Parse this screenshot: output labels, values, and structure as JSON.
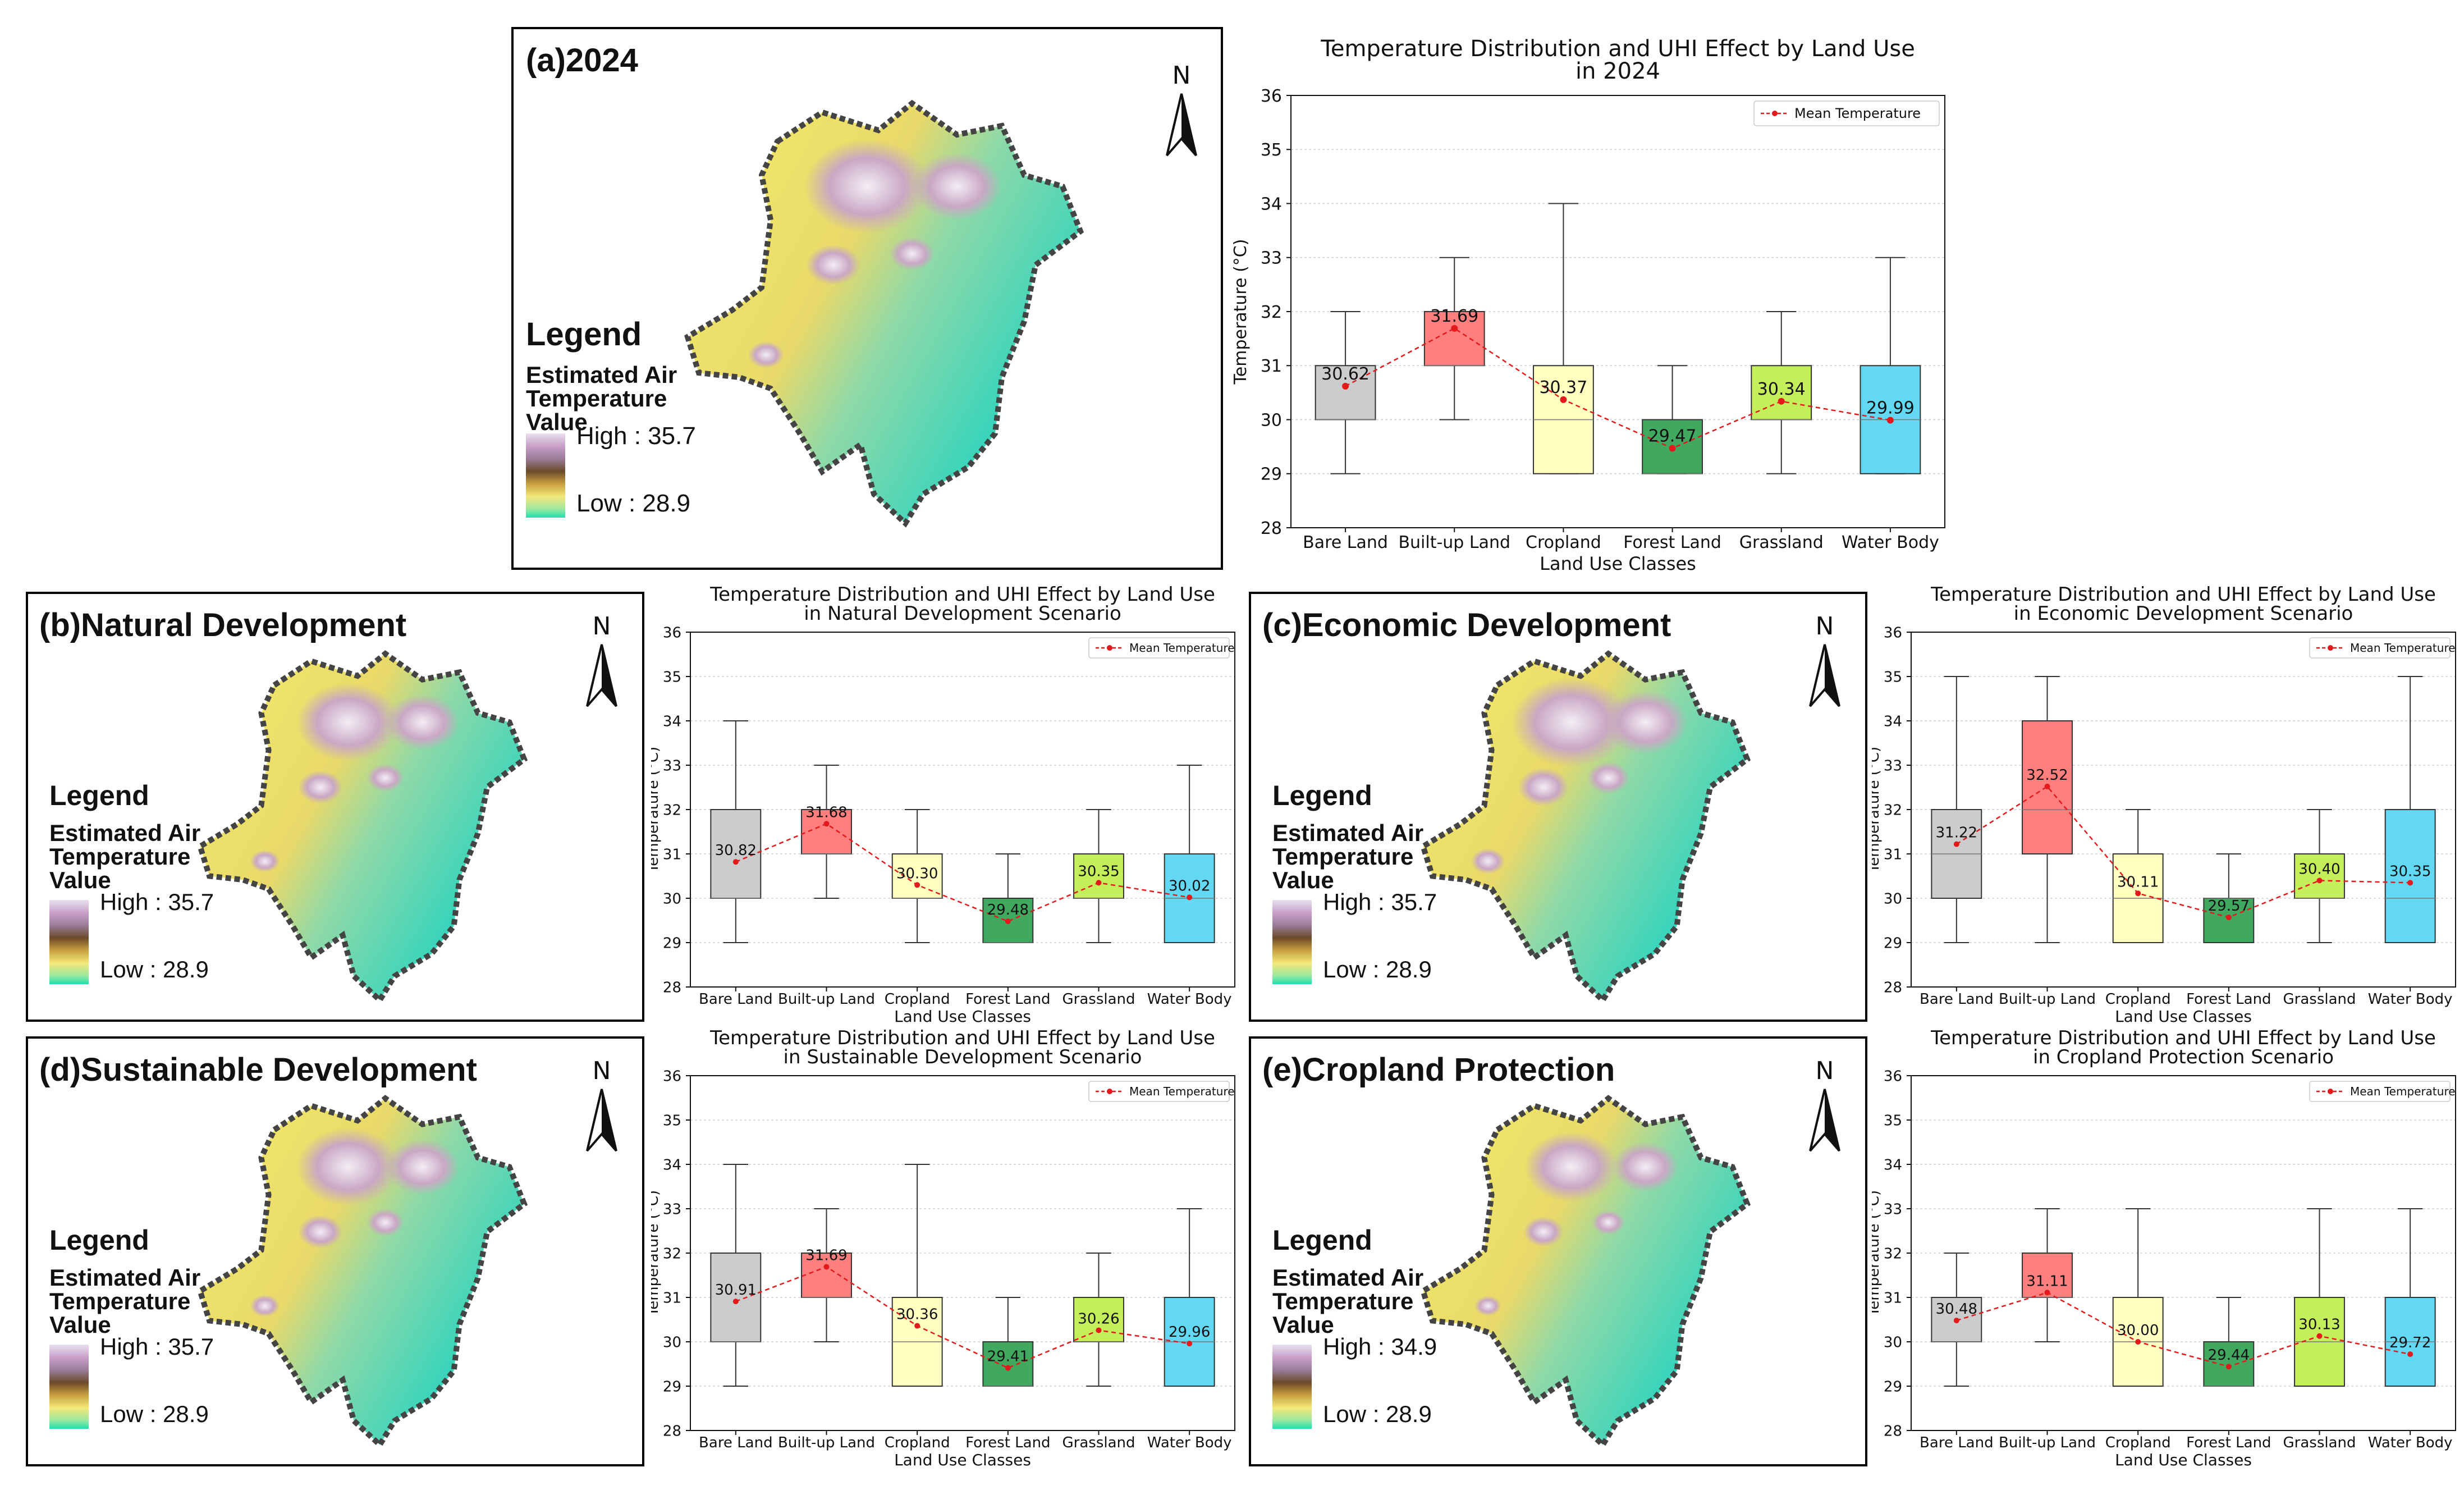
{
  "maps": [
    {
      "id": "a",
      "title": "(a)2024",
      "legend_title": "Legend",
      "legend_sub": [
        "Estimated Air",
        "Temperature",
        "Value"
      ],
      "high": "High : 35.7",
      "low": "Low : 28.9",
      "north": "N",
      "variant": 0
    },
    {
      "id": "b",
      "title": "(b)Natural Development",
      "legend_title": "Legend",
      "legend_sub": [
        "Estimated Air",
        "Temperature",
        "Value"
      ],
      "high": "High : 35.7",
      "low": "Low : 28.9",
      "north": "N",
      "variant": 1
    },
    {
      "id": "c",
      "title": "(c)Economic Development",
      "legend_title": "Legend",
      "legend_sub": [
        "Estimated Air",
        "Temperature",
        "Value"
      ],
      "high": "High : 35.7",
      "low": "Low : 28.9",
      "north": "N",
      "variant": 2
    },
    {
      "id": "d",
      "title": "(d)Sustainable Development",
      "legend_title": "Legend",
      "legend_sub": [
        "Estimated Air",
        "Temperature",
        "Value"
      ],
      "high": "High : 35.7",
      "low": "Low : 28.9",
      "north": "N",
      "variant": 3
    },
    {
      "id": "e",
      "title": "(e)Cropland Protection",
      "legend_title": "Legend",
      "legend_sub": [
        "Estimated Air",
        "Temperature",
        "Value"
      ],
      "high": "High : 34.9",
      "low": "Low : 28.9",
      "north": "N",
      "variant": 4
    }
  ],
  "colors": {
    "Bare Land": "#cccccc",
    "Built-up Land": "#ff7f7f",
    "Cropland": "#ffffc0",
    "Forest Land": "#41a85f",
    "Grassland": "#c4ee5a",
    "Water Body": "#63d8f2",
    "mean": "#e31a1c",
    "map_cool": "#1fd3c0",
    "map_warm": "#f5ec6a",
    "map_hot": "#c9a7c4"
  },
  "chart_data": [
    {
      "id": "a",
      "type": "box",
      "title": [
        "Temperature Distribution and UHI Effect by Land Use",
        "in 2024"
      ],
      "xlabel": "Land Use Classes",
      "ylabel": "Temperature (°C)",
      "ylim": [
        28,
        36
      ],
      "yticks": [
        28,
        29,
        30,
        31,
        32,
        33,
        34,
        35,
        36
      ],
      "legend": "Mean Temperature",
      "legend_loc": "upper right",
      "categories": [
        "Bare Land",
        "Built-up Land",
        "Cropland",
        "Forest Land",
        "Grassland",
        "Water Body"
      ],
      "boxes": [
        {
          "min": 29,
          "q1": 30,
          "median": 30,
          "q3": 31,
          "max": 32
        },
        {
          "min": 30,
          "q1": 31,
          "median": 31,
          "q3": 32,
          "max": 33
        },
        {
          "min": 29,
          "q1": 29,
          "median": 30,
          "q3": 31,
          "max": 34
        },
        {
          "min": 29,
          "q1": 29,
          "median": 29,
          "q3": 30,
          "max": 31
        },
        {
          "min": 29,
          "q1": 30,
          "median": 30,
          "q3": 31,
          "max": 32
        },
        {
          "min": 29,
          "q1": 29,
          "median": 30,
          "q3": 31,
          "max": 33
        }
      ],
      "means": [
        30.62,
        31.69,
        30.37,
        29.47,
        30.34,
        29.99
      ],
      "mean_labels": [
        "30.62",
        "31.69",
        "30.37",
        "29.47",
        "30.34",
        "29.99"
      ]
    },
    {
      "id": "b",
      "type": "box",
      "title": [
        "Temperature Distribution and UHI Effect by Land Use",
        "in Natural Development Scenario"
      ],
      "xlabel": "Land Use Classes",
      "ylabel": "Temperature (°C)",
      "ylim": [
        28,
        36
      ],
      "yticks": [
        28,
        29,
        30,
        31,
        32,
        33,
        34,
        35,
        36
      ],
      "legend": "Mean Temperature",
      "legend_loc": "upper right",
      "categories": [
        "Bare Land",
        "Built-up Land",
        "Cropland",
        "Forest Land",
        "Grassland",
        "Water Body"
      ],
      "boxes": [
        {
          "min": 29,
          "q1": 30,
          "median": 30,
          "q3": 32,
          "max": 34
        },
        {
          "min": 30,
          "q1": 31,
          "median": 31,
          "q3": 32,
          "max": 33
        },
        {
          "min": 29,
          "q1": 30,
          "median": 30,
          "q3": 31,
          "max": 32
        },
        {
          "min": 29,
          "q1": 29,
          "median": 29,
          "q3": 30,
          "max": 31
        },
        {
          "min": 29,
          "q1": 30,
          "median": 30,
          "q3": 31,
          "max": 32
        },
        {
          "min": 29,
          "q1": 29,
          "median": 30,
          "q3": 31,
          "max": 33
        }
      ],
      "means": [
        30.82,
        31.68,
        30.3,
        29.48,
        30.35,
        30.02
      ],
      "mean_labels": [
        "30.82",
        "31.68",
        "30.30",
        "29.48",
        "30.35",
        "30.02"
      ]
    },
    {
      "id": "c",
      "type": "box",
      "title": [
        "Temperature Distribution and UHI Effect by Land Use",
        "in Economic Development Scenario"
      ],
      "xlabel": "Land Use Classes",
      "ylabel": "Temperature (°C)",
      "ylim": [
        28,
        36
      ],
      "yticks": [
        28,
        29,
        30,
        31,
        32,
        33,
        34,
        35,
        36
      ],
      "legend": "Mean Temperature",
      "legend_loc": "upper right",
      "categories": [
        "Bare Land",
        "Built-up Land",
        "Cropland",
        "Forest Land",
        "Grassland",
        "Water Body"
      ],
      "boxes": [
        {
          "min": 29,
          "q1": 30,
          "median": 31,
          "q3": 32,
          "max": 35
        },
        {
          "min": 29,
          "q1": 31,
          "median": 32,
          "q3": 34,
          "max": 35
        },
        {
          "min": 29,
          "q1": 29,
          "median": 30,
          "q3": 31,
          "max": 32
        },
        {
          "min": 29,
          "q1": 29,
          "median": 30,
          "q3": 30,
          "max": 31
        },
        {
          "min": 29,
          "q1": 30,
          "median": 30,
          "q3": 31,
          "max": 32
        },
        {
          "min": 29,
          "q1": 29,
          "median": 30,
          "q3": 32,
          "max": 35
        }
      ],
      "means": [
        31.22,
        32.52,
        30.11,
        29.57,
        30.4,
        30.35
      ],
      "mean_labels": [
        "31.22",
        "32.52",
        "30.11",
        "29.57",
        "30.40",
        "30.35"
      ]
    },
    {
      "id": "d",
      "type": "box",
      "title": [
        "Temperature Distribution and UHI Effect by Land Use",
        "in Sustainable Development Scenario"
      ],
      "xlabel": "Land Use Classes",
      "ylabel": "Temperature (°C)",
      "ylim": [
        28,
        36
      ],
      "yticks": [
        28,
        29,
        30,
        31,
        32,
        33,
        34,
        35,
        36
      ],
      "legend": "Mean Temperature",
      "legend_loc": "upper right",
      "categories": [
        "Bare Land",
        "Built-up Land",
        "Cropland",
        "Forest Land",
        "Grassland",
        "Water Body"
      ],
      "boxes": [
        {
          "min": 29,
          "q1": 30,
          "median": 30,
          "q3": 32,
          "max": 34
        },
        {
          "min": 30,
          "q1": 31,
          "median": 31,
          "q3": 32,
          "max": 33
        },
        {
          "min": 29,
          "q1": 29,
          "median": 30,
          "q3": 31,
          "max": 34
        },
        {
          "min": 29,
          "q1": 29,
          "median": 29,
          "q3": 30,
          "max": 31
        },
        {
          "min": 29,
          "q1": 30,
          "median": 30,
          "q3": 31,
          "max": 32
        },
        {
          "min": 29,
          "q1": 29,
          "median": 30,
          "q3": 31,
          "max": 33
        }
      ],
      "means": [
        30.91,
        31.69,
        30.36,
        29.41,
        30.26,
        29.96
      ],
      "mean_labels": [
        "30.91",
        "31.69",
        "30.36",
        "29.41",
        "30.26",
        "29.96"
      ]
    },
    {
      "id": "e",
      "type": "box",
      "title": [
        "Temperature Distribution and UHI Effect by Land Use",
        "in Cropland Protection Scenario"
      ],
      "xlabel": "Land Use Classes",
      "ylabel": "Temperature (°C)",
      "ylim": [
        28,
        36
      ],
      "yticks": [
        28,
        29,
        30,
        31,
        32,
        33,
        34,
        35,
        36
      ],
      "legend": "Mean Temperature",
      "legend_loc": "upper right",
      "categories": [
        "Bare Land",
        "Built-up Land",
        "Cropland",
        "Forest Land",
        "Grassland",
        "Water Body"
      ],
      "boxes": [
        {
          "min": 29,
          "q1": 30,
          "median": 30,
          "q3": 31,
          "max": 32
        },
        {
          "min": 30,
          "q1": 31,
          "median": 31,
          "q3": 32,
          "max": 33
        },
        {
          "min": 29,
          "q1": 29,
          "median": 30,
          "q3": 31,
          "max": 33
        },
        {
          "min": 29,
          "q1": 29,
          "median": 29,
          "q3": 30,
          "max": 31
        },
        {
          "min": 29,
          "q1": 29,
          "median": 30,
          "q3": 31,
          "max": 33
        },
        {
          "min": 29,
          "q1": 29,
          "median": 30,
          "q3": 31,
          "max": 33
        }
      ],
      "means": [
        30.48,
        31.11,
        30.0,
        29.44,
        30.13,
        29.72
      ],
      "mean_labels": [
        "30.48",
        "31.11",
        "30.00",
        "29.44",
        "30.13",
        "29.72"
      ]
    }
  ]
}
